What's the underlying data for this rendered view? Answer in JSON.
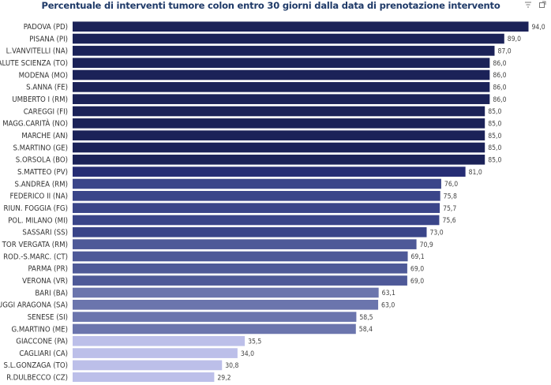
{
  "title": "Percentuale di interventi tumore colon entro 30 giorni dalla data di prenotazione intervento",
  "toolbar": {
    "filter_icon": "filter-icon",
    "expand_icon": "focus-mode-icon"
  },
  "chart_data": {
    "type": "bar",
    "orientation": "horizontal",
    "title": "Percentuale di interventi tumore colon entro 30 giorni dalla data di prenotazione intervento",
    "xlabel": "",
    "ylabel": "",
    "xlim": [
      0,
      100
    ],
    "grid": false,
    "categories": [
      "PADOVA (PD)",
      "PISANA (PI)",
      "L.VANVITELLI (NA)",
      "SALUTE SCIENZA (TO)",
      "MODENA (MO)",
      "S.ANNA (FE)",
      "UMBERTO I (RM)",
      "CAREGGI (FI)",
      "MAGG.CARITÀ (NO)",
      "MARCHE (AN)",
      "S.MARTINO (GE)",
      "S.ORSOLA (BO)",
      "S.MATTEO (PV)",
      "S.ANDREA (RM)",
      "FEDERICO II (NA)",
      "RIUN. FOGGIA (FG)",
      "POL. MILANO (MI)",
      "SASSARI (SS)",
      "TOR VERGATA (RM)",
      "ROD.-S.MARC. (CT)",
      "PARMA (PR)",
      "VERONA (VR)",
      "BARI (BA)",
      "RUGGI ARAGONA (SA)",
      "SENESE (SI)",
      "G.MARTINO (ME)",
      "GIACCONE (PA)",
      "CAGLIARI (CA)",
      "S.L.GONZAGA (TO)",
      "R.DULBECCO (CZ)"
    ],
    "values": [
      94.0,
      89.0,
      87.0,
      86.0,
      86.0,
      86.0,
      86.0,
      85.0,
      85.0,
      85.0,
      85.0,
      85.0,
      81.0,
      76.0,
      75.8,
      75.7,
      75.6,
      73.0,
      70.9,
      69.1,
      69.0,
      69.0,
      63.1,
      63.0,
      58.5,
      58.4,
      35.5,
      34.0,
      30.8,
      29.2
    ],
    "value_labels": [
      "94,0",
      "89,0",
      "87,0",
      "86,0",
      "86,0",
      "86,0",
      "86,0",
      "85,0",
      "85,0",
      "85,0",
      "85,0",
      "85,0",
      "81,0",
      "76,0",
      "75,8",
      "75,7",
      "75,6",
      "73,0",
      "70,9",
      "69,1",
      "69,0",
      "69,0",
      "63,1",
      "63,0",
      "58,5",
      "58,4",
      "35,5",
      "34,0",
      "30,8",
      "29,2"
    ],
    "colors": {
      "darkest": "#1b2258",
      "dark": "#262d74",
      "mid": "#3a4589",
      "midlight": "#4e5998",
      "light": "#6b75ad",
      "pale": "#bcbfe9"
    },
    "label_color": "#333333",
    "value_label_color": "#444444"
  }
}
